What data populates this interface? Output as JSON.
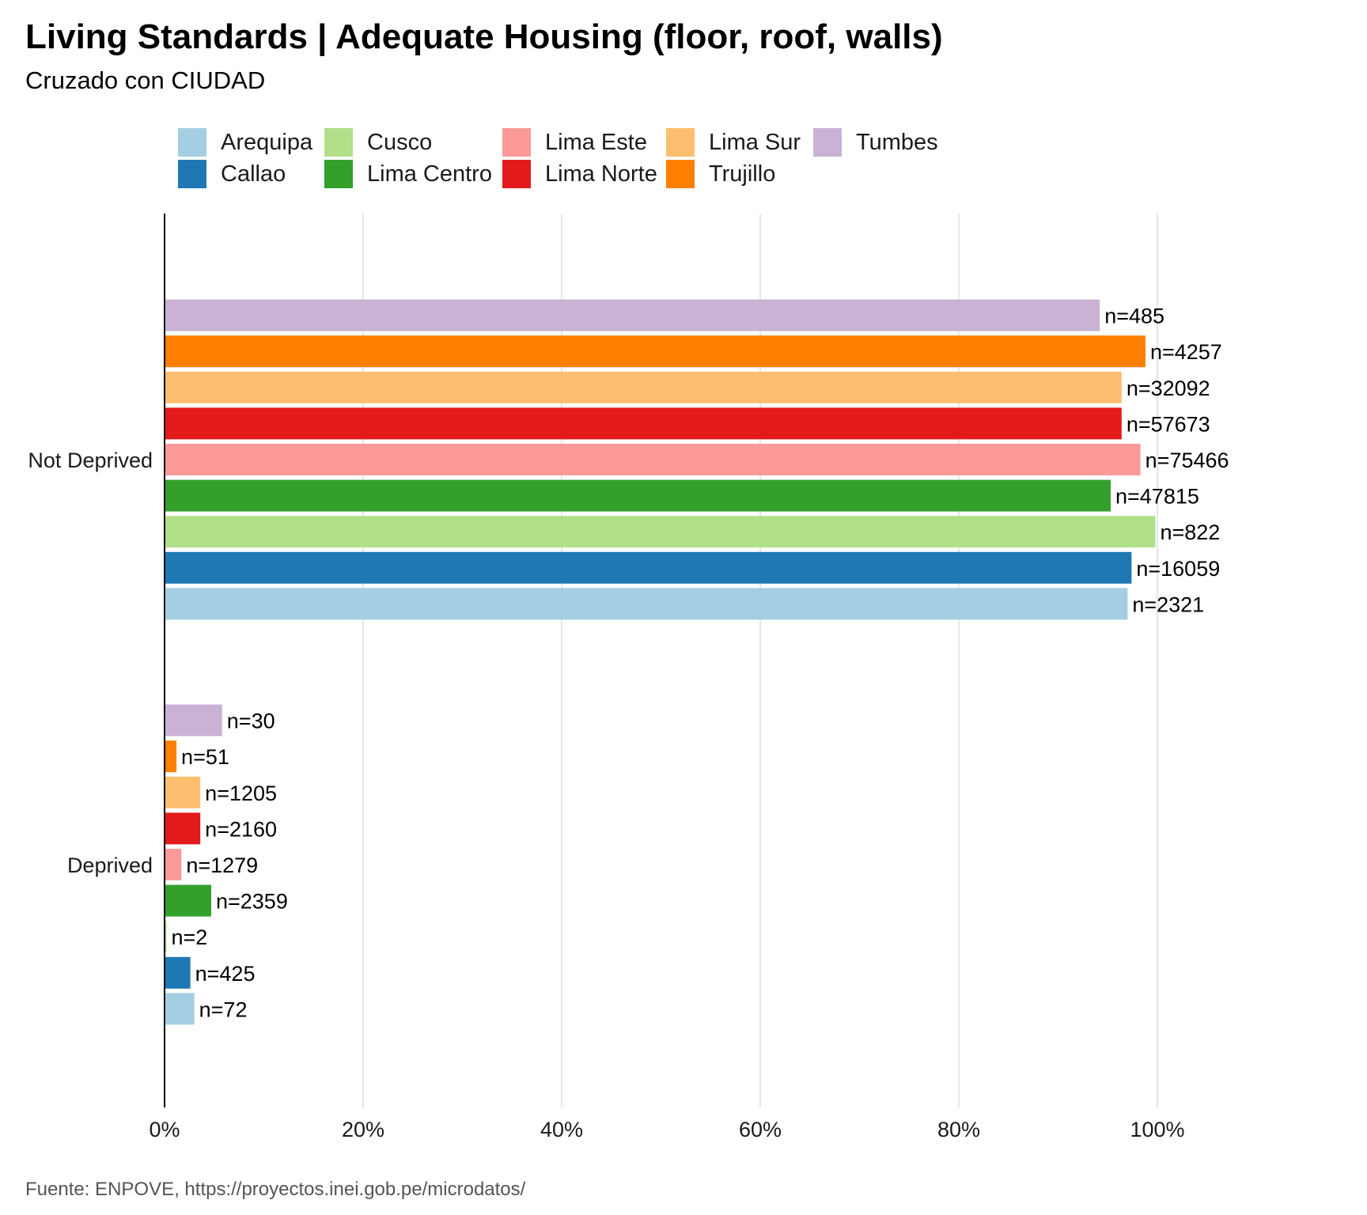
{
  "chart_data": {
    "type": "bar",
    "orientation": "horizontal",
    "title": "Living Standards | Adequate Housing (floor, roof, walls)",
    "subtitle": "Cruzado con CIUDAD",
    "source": "Fuente:  ENPOVE, https://proyectos.inei.gob.pe/microdatos/",
    "categories": [
      "Not Deprived",
      "Deprived"
    ],
    "x_ticks": [
      "0%",
      "20%",
      "40%",
      "60%",
      "80%",
      "100%"
    ],
    "xlim": [
      0,
      1
    ],
    "grid": true,
    "legend_position": "top",
    "series": [
      {
        "name": "Arequipa",
        "color": "#a6cee3",
        "values": [
          0.97,
          0.03
        ],
        "labels": [
          "n=2321",
          "n=72"
        ]
      },
      {
        "name": "Callao",
        "color": "#1f78b4",
        "values": [
          0.974,
          0.026
        ],
        "labels": [
          "n=16059",
          "n=425"
        ]
      },
      {
        "name": "Cusco",
        "color": "#b2df8a",
        "values": [
          0.998,
          0.002
        ],
        "labels": [
          "n=822",
          "n=2"
        ]
      },
      {
        "name": "Lima Centro",
        "color": "#33a02c",
        "values": [
          0.953,
          0.047
        ],
        "labels": [
          "n=47815",
          "n=2359"
        ]
      },
      {
        "name": "Lima Este",
        "color": "#fb9a99",
        "values": [
          0.983,
          0.017
        ],
        "labels": [
          "n=75466",
          "n=1279"
        ]
      },
      {
        "name": "Lima Norte",
        "color": "#e31a1c",
        "values": [
          0.964,
          0.036
        ],
        "labels": [
          "n=57673",
          "n=2160"
        ]
      },
      {
        "name": "Lima Sur",
        "color": "#fdbf6f",
        "values": [
          0.964,
          0.036
        ],
        "labels": [
          "n=32092",
          "n=1205"
        ]
      },
      {
        "name": "Trujillo",
        "color": "#ff7f00",
        "values": [
          0.988,
          0.012
        ],
        "labels": [
          "n=4257",
          "n=51"
        ]
      },
      {
        "name": "Tumbes",
        "color": "#cab2d6",
        "values": [
          0.942,
          0.058
        ],
        "labels": [
          "n=485",
          "n=30"
        ]
      }
    ]
  }
}
